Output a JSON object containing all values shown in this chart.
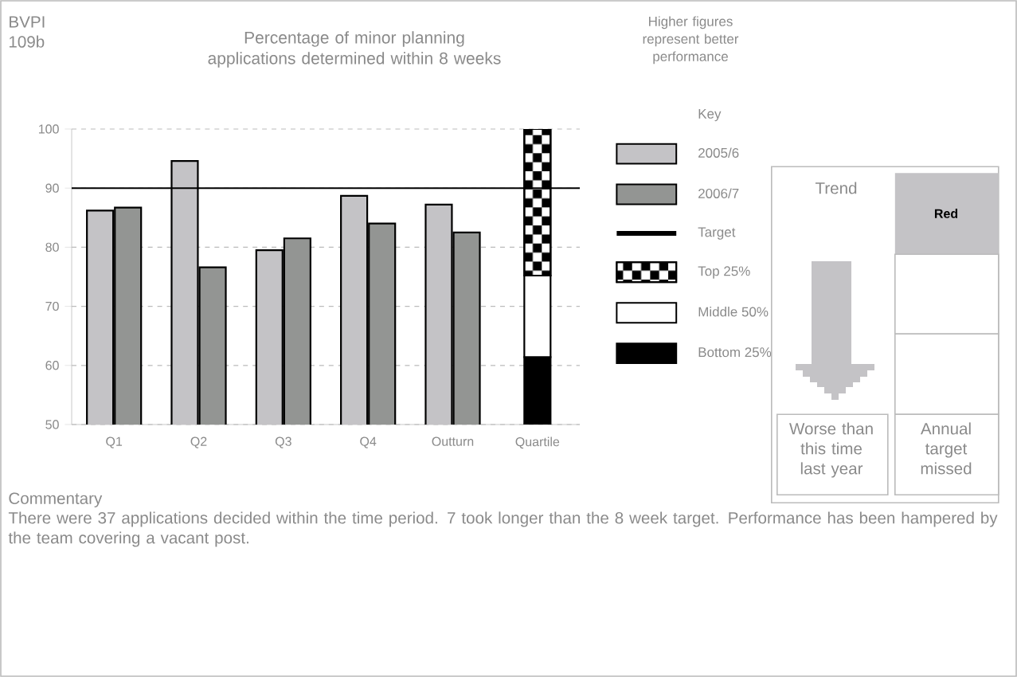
{
  "chart_data": {
    "type": "bar",
    "title": "Percentage of minor planning applications determined within 8 weeks",
    "categories": [
      "Q1",
      "Q2",
      "Q3",
      "Q4",
      "Outturn",
      "Quartile"
    ],
    "series": [
      {
        "name": "2005/6",
        "color": "#c4c3c6",
        "values": [
          86.2,
          94.6,
          79.5,
          88.7,
          87.2,
          null
        ]
      },
      {
        "name": "2006/7",
        "color": "#939593",
        "values": [
          86.7,
          76.6,
          81.5,
          84.0,
          82.5,
          null
        ]
      },
      {
        "name": "Bottom 25%",
        "color": "#000000",
        "values": [
          null,
          null,
          null,
          null,
          null,
          11.4
        ],
        "base": [
          null,
          null,
          null,
          null,
          null,
          50
        ]
      },
      {
        "name": "Middle 50%",
        "color": "#ffffff",
        "values": [
          null,
          null,
          null,
          null,
          null,
          13.8
        ],
        "base": [
          null,
          null,
          null,
          null,
          null,
          61.4
        ]
      },
      {
        "name": "Top 25%",
        "color": "#000000",
        "values": [
          null,
          null,
          null,
          null,
          null,
          24.8
        ],
        "base": [
          null,
          null,
          null,
          null,
          null,
          75.2
        ]
      }
    ],
    "ylim": [
      50,
      100
    ],
    "yticks": [
      50,
      60,
      70,
      80,
      90,
      100
    ],
    "grid": "y",
    "ref_lines": [
      {
        "axis": "y",
        "value": 90,
        "label": "Target",
        "color": "#000000"
      }
    ],
    "legend": "right",
    "legend_title": "Key",
    "annotations": [
      "BVPI 109b",
      "Higher figures represent better performance",
      "Trend",
      "Red",
      "Worse than this time last year",
      "Annual target missed",
      "Commentary",
      "There were 37 applications decided within the time period. 7 took longer than the 8 week target. Performance has been hampered by the team covering a vacant post."
    ]
  }
}
